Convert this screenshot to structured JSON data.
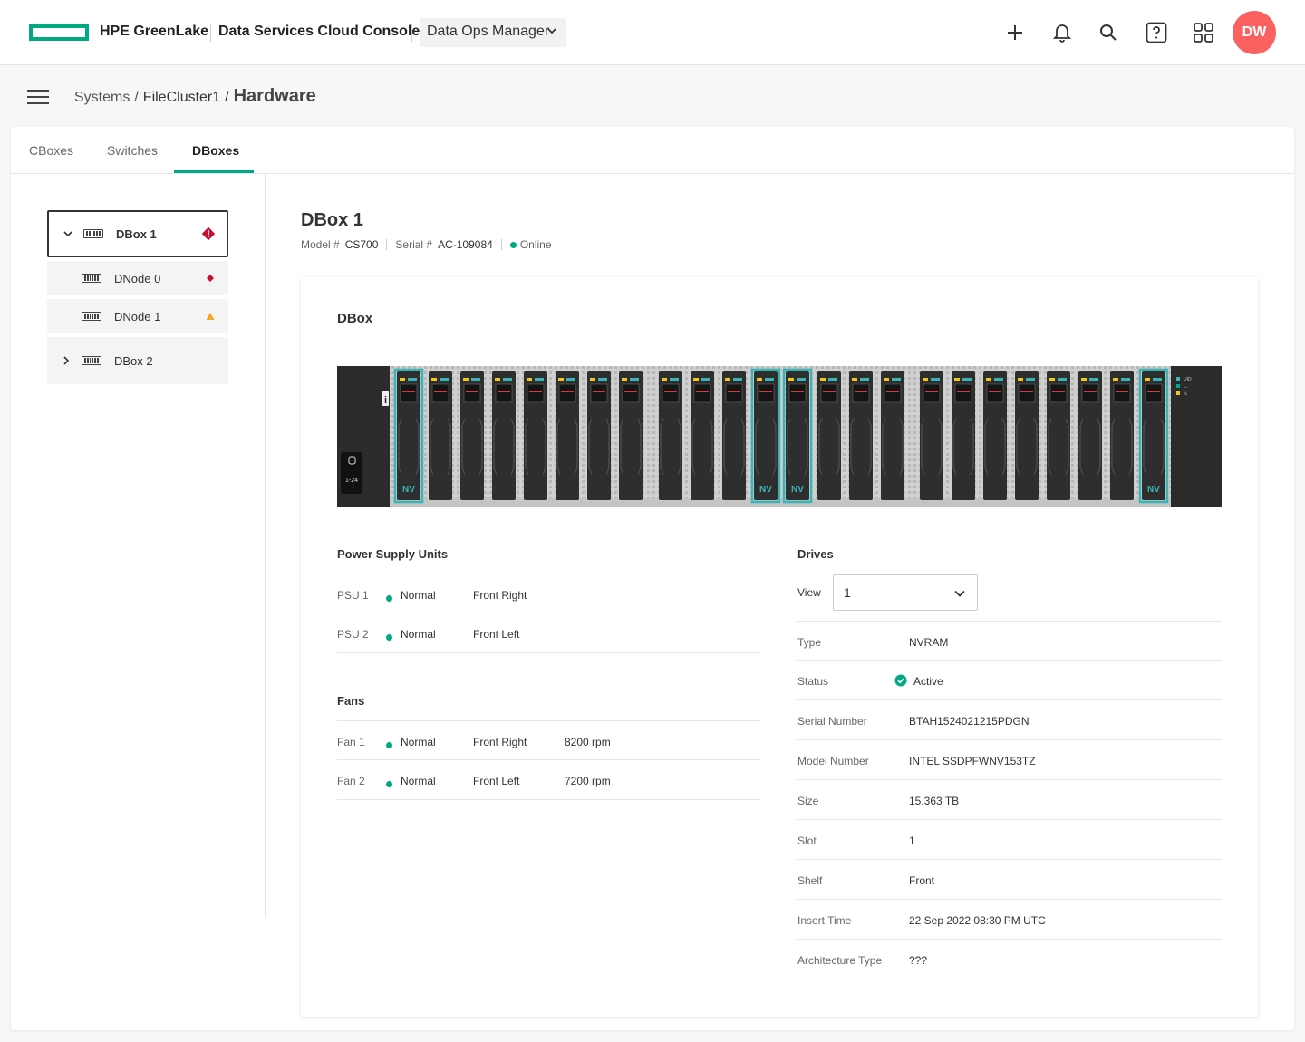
{
  "header": {
    "brand": "HPE GreenLake",
    "console": "Data Services Cloud Console",
    "app_selector": "Data Ops Manager",
    "avatar_initials": "DW",
    "icons": [
      "plus-icon",
      "bell-icon",
      "search-icon",
      "help-icon",
      "apps-grid-icon"
    ],
    "accent": "#01a982",
    "avatar_color": "#fc6161"
  },
  "breadcrumb": {
    "systems": "Systems",
    "sep1": "/",
    "cluster": "FileCluster1",
    "sep2": "/",
    "page": "Hardware"
  },
  "tabs": [
    {
      "label": "CBoxes",
      "active": false
    },
    {
      "label": "Switches",
      "active": false
    },
    {
      "label": "DBoxes",
      "active": true
    }
  ],
  "tree": [
    {
      "label": "DBox 1",
      "expanded": true,
      "selected": true,
      "status": "critical"
    },
    {
      "label": "DNode 0",
      "status": "critical"
    },
    {
      "label": "DNode 1",
      "status": "warning"
    },
    {
      "label": "DBox 2",
      "expanded": false,
      "status": "none"
    }
  ],
  "detail": {
    "title": "DBox 1",
    "model_label": "Model #",
    "model": "CS700",
    "serial_label": "Serial #",
    "serial": "AC-109084",
    "state": "Online"
  },
  "chassis": {
    "heading": "DBox",
    "nv_label": "NV",
    "bay_range": "1-24",
    "led_labels": [
      "UID",
      "↔",
      "⚠"
    ],
    "nv_slots": [
      0,
      11,
      12,
      23
    ],
    "slot_count": 24,
    "highlight_color": "#39b5b8"
  },
  "psu": {
    "heading": "Power Supply Units",
    "rows": [
      {
        "name": "PSU 1",
        "status": "Normal",
        "location": "Front Right"
      },
      {
        "name": "PSU 2",
        "status": "Normal",
        "location": "Front Left"
      }
    ]
  },
  "fans": {
    "heading": "Fans",
    "rows": [
      {
        "name": "Fan 1",
        "status": "Normal",
        "location": "Front Right",
        "speed": "8200 rpm"
      },
      {
        "name": "Fan 2",
        "status": "Normal",
        "location": "Front Left",
        "speed": "7200 rpm"
      }
    ]
  },
  "drives": {
    "heading": "Drives",
    "view_label": "View",
    "view_value": "1",
    "props": [
      {
        "label": "Type",
        "value": "NVRAM"
      },
      {
        "label": "Status",
        "value": "Active"
      },
      {
        "label": "Serial Number",
        "value": "BTAH1524021215PDGN"
      },
      {
        "label": "Model Number",
        "value": "INTEL SSDPFWNV153TZ"
      },
      {
        "label": "Size",
        "value": "15.363 TB"
      },
      {
        "label": "Slot",
        "value": "1"
      },
      {
        "label": "Shelf",
        "value": "Front"
      },
      {
        "label": "Insert Time",
        "value": "22 Sep 2022 08:30 PM UTC"
      },
      {
        "label": "Architecture Type",
        "value": "???"
      }
    ]
  }
}
